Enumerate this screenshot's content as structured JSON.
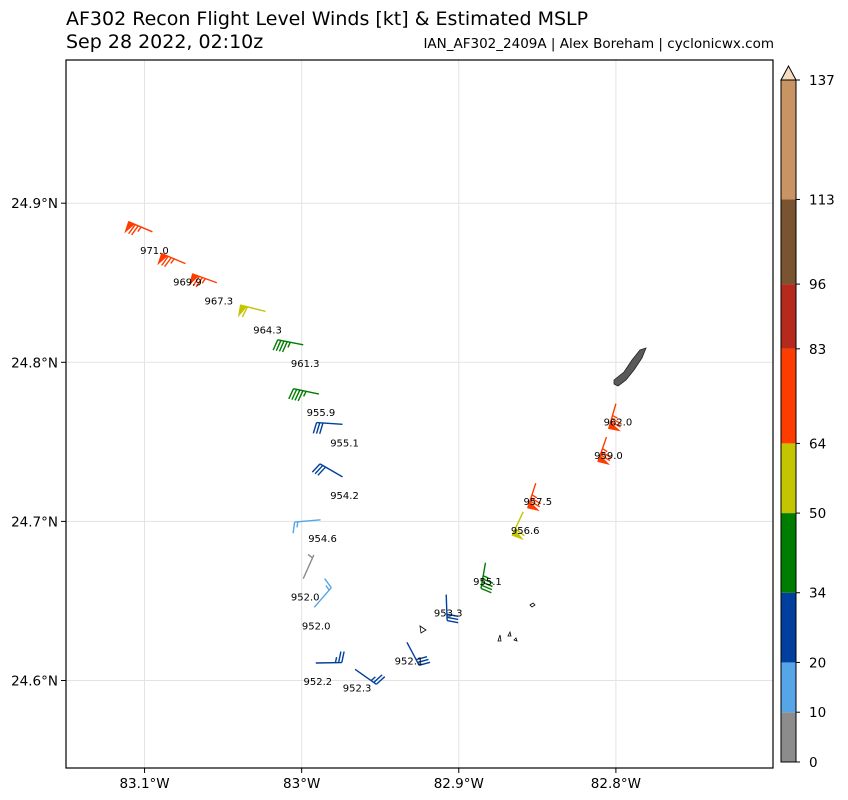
{
  "header": {
    "title_line1": "AF302 Recon Flight Level Winds [kt] & Estimated MSLP",
    "title_line2": "Sep 28 2022, 02:10z",
    "credit": "IAN_AF302_2409A | Alex Boreham | cyclonicwx.com"
  },
  "map": {
    "lon_range": [
      -83.15,
      -82.7
    ],
    "lat_range": [
      24.545,
      24.99
    ],
    "lon_ticks": [
      {
        "value": -83.1,
        "label": "83.1°W"
      },
      {
        "value": -83.0,
        "label": "83°W"
      },
      {
        "value": -82.9,
        "label": "82.9°W"
      },
      {
        "value": -82.8,
        "label": "82.8°W"
      }
    ],
    "lat_ticks": [
      {
        "value": 24.9,
        "label": "24.9°N"
      },
      {
        "value": 24.8,
        "label": "24.8°N"
      },
      {
        "value": 24.7,
        "label": "24.7°N"
      },
      {
        "value": 24.6,
        "label": "24.6°N"
      }
    ],
    "grid": true
  },
  "colorbar": {
    "levels": [
      0,
      10,
      20,
      34,
      50,
      64,
      83,
      96,
      113,
      137
    ],
    "labels": [
      "0",
      "10",
      "20",
      "34",
      "50",
      "64",
      "83",
      "96",
      "113",
      "137"
    ],
    "colors": [
      "#8c8c8c",
      "#56a5e8",
      "#003f9e",
      "#007c00",
      "#c4c400",
      "#ff3c00",
      "#b52a1c",
      "#7a5430",
      "#c89464"
    ],
    "extend": "max",
    "extend_color": "#f5dcc0"
  },
  "observations": [
    {
      "lon": -83.095,
      "lat": 24.882,
      "wdir": 293,
      "wspd": 75,
      "mslp": "971.0"
    },
    {
      "lon": -83.074,
      "lat": 24.862,
      "wdir": 293,
      "wspd": 75,
      "mslp": "969.9"
    },
    {
      "lon": -83.054,
      "lat": 24.85,
      "wdir": 290,
      "wspd": 75,
      "mslp": "967.3"
    },
    {
      "lon": -83.023,
      "lat": 24.832,
      "wdir": 284,
      "wspd": 60,
      "mslp": "964.3"
    },
    {
      "lon": -82.999,
      "lat": 24.811,
      "wdir": 281,
      "wspd": 45,
      "mslp": "961.3"
    },
    {
      "lon": -82.989,
      "lat": 24.78,
      "wdir": 282,
      "wspd": 45,
      "mslp": "955.9"
    },
    {
      "lon": -82.974,
      "lat": 24.761,
      "wdir": 274,
      "wspd": 30,
      "mslp": "955.1"
    },
    {
      "lon": -82.974,
      "lat": 24.728,
      "wdir": 300,
      "wspd": 30,
      "mslp": "954.2"
    },
    {
      "lon": -82.988,
      "lat": 24.701,
      "wdir": 265,
      "wspd": 15,
      "mslp": "954.6"
    },
    {
      "lon": -82.999,
      "lat": 24.664,
      "wdir": 24,
      "wspd": 5,
      "mslp": "952.0"
    },
    {
      "lon": -82.992,
      "lat": 24.646,
      "wdir": 41,
      "wspd": 15,
      "mslp": "952.0"
    },
    {
      "lon": -82.991,
      "lat": 24.611,
      "wdir": 89,
      "wspd": 25,
      "mslp": "952.2"
    },
    {
      "lon": -82.966,
      "lat": 24.607,
      "wdir": 125,
      "wspd": 25,
      "mslp": "952.3"
    },
    {
      "lon": -82.933,
      "lat": 24.624,
      "wdir": 152,
      "wspd": 30,
      "mslp": "952.1"
    },
    {
      "lon": -82.908,
      "lat": 24.654,
      "wdir": 178,
      "wspd": 30,
      "mslp": "953.3"
    },
    {
      "lon": -82.883,
      "lat": 24.674,
      "wdir": 190,
      "wspd": 45,
      "mslp": "955.1"
    },
    {
      "lon": -82.859,
      "lat": 24.706,
      "wdir": 205,
      "wspd": 60,
      "mslp": "956.6"
    },
    {
      "lon": -82.851,
      "lat": 24.724,
      "wdir": 198,
      "wspd": 75,
      "mslp": "957.5"
    },
    {
      "lon": -82.806,
      "lat": 24.753,
      "wdir": 199,
      "wspd": 75,
      "mslp": "959.0"
    },
    {
      "lon": -82.8,
      "lat": 24.774,
      "wdir": 196,
      "wspd": 75,
      "mslp": "962.0"
    }
  ]
}
